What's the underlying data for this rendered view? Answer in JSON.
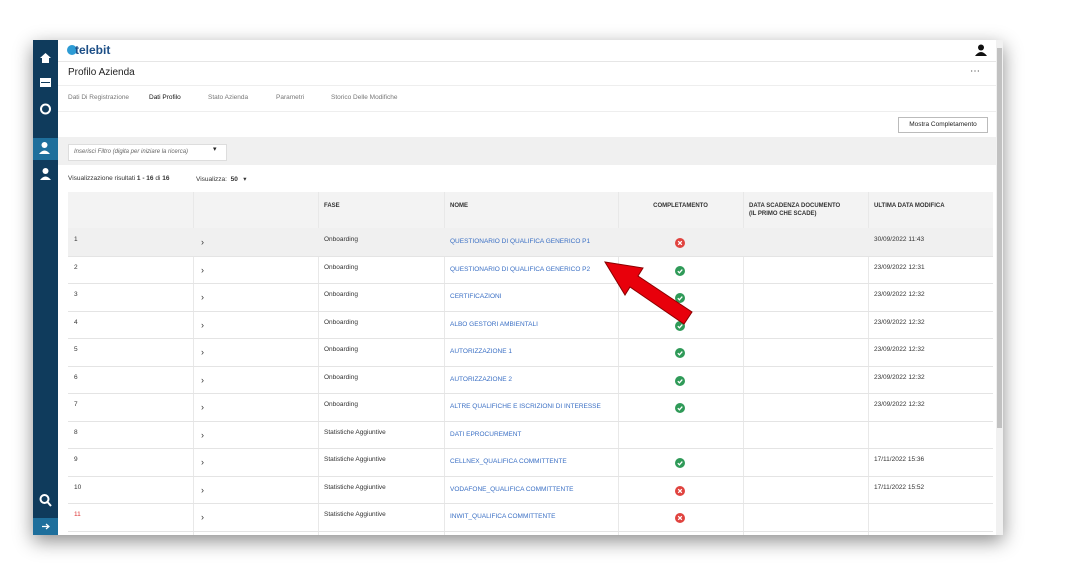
{
  "header": {
    "logo": "telebit",
    "title": "Profilo Azienda"
  },
  "tabs": [
    "Dati Di Registrazione",
    "Dati Profilo",
    "Stato Azienda",
    "Parametri",
    "Storico Delle Modifiche"
  ],
  "button": "Mostra Completamento",
  "filter": {
    "placeholder": "Inserisci Filtro (digita per iniziare la ricerca)"
  },
  "results": {
    "prefix": "Visualizzazione risultati",
    "range": "1 - 16",
    "of": "di",
    "total": "16",
    "page_size_label": "Visualizza:",
    "page_size": "50"
  },
  "table": {
    "columns": [
      "FASE",
      "NOME",
      "COMPLETAMENTO",
      "DATA SCADENZA DOCUMENTO (IL PRIMO CHE SCADE)",
      "ULTIMA DATA MODIFICA"
    ],
    "rows": [
      {
        "num": "1",
        "fase": "Onboarding",
        "nome": "QUESTIONARIO DI QUALIFICA GENERICO P1",
        "data": "30/09/2022 11:43"
      },
      {
        "num": "2",
        "fase": "Onboarding",
        "nome": "QUESTIONARIO DI QUALIFICA GENERICO P2",
        "data": "23/09/2022 12:31"
      },
      {
        "num": "3",
        "fase": "Onboarding",
        "nome": "CERTIFICAZIONI",
        "data": "23/09/2022 12:32"
      },
      {
        "num": "4",
        "fase": "Onboarding",
        "nome": "ALBO GESTORI AMBIENTALI",
        "data": "23/09/2022 12:32"
      },
      {
        "num": "5",
        "fase": "Onboarding",
        "nome": "AUTORIZZAZIONE 1",
        "data": "23/09/2022 12:32"
      },
      {
        "num": "6",
        "fase": "Onboarding",
        "nome": "AUTORIZZAZIONE 2",
        "data": "23/09/2022 12:32"
      },
      {
        "num": "7",
        "fase": "Onboarding",
        "nome": "ALTRE QUALIFICHE E ISCRIZIONI DI INTERESSE",
        "data": "23/09/2022 12:32"
      },
      {
        "num": "8",
        "fase": "Statistiche Aggiuntive",
        "nome": "DATI EPROCUREMENT"
      },
      {
        "num": "9",
        "fase": "Statistiche Aggiuntive",
        "nome": "CELLNEX_QUALIFICA COMMITTENTE",
        "data": "17/11/2022 15:36"
      },
      {
        "num": "10",
        "fase": "Statistiche Aggiuntive",
        "nome": "VODAFONE_QUALIFICA COMMITTENTE",
        "data": "17/11/2022 15:52"
      },
      {
        "num": "11",
        "fase": "Statistiche Aggiuntive",
        "nome": "INWIT_QUALIFICA COMMITTENTE"
      }
    ]
  }
}
